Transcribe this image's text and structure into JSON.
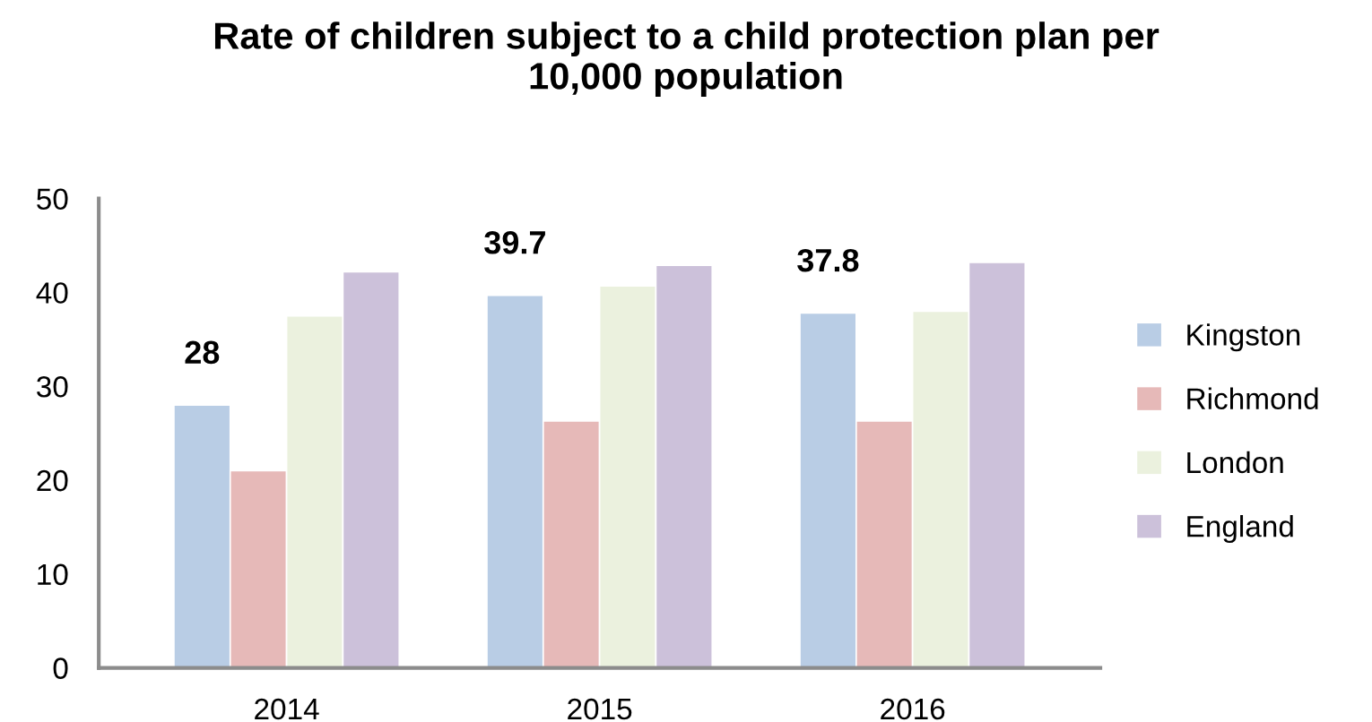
{
  "chart_data": {
    "type": "bar",
    "title": "Rate of children subject to a child protection plan per\n10,000 population",
    "categories": [
      "2014",
      "2015",
      "2016"
    ],
    "series": [
      {
        "name": "Kingston",
        "color": "#b9cde5",
        "values": [
          28,
          39.7,
          37.8
        ],
        "value_labels": [
          "28",
          "39.7",
          "37.8"
        ]
      },
      {
        "name": "Richmond",
        "color": "#e6b9b8",
        "values": [
          21.0,
          26.3,
          26.3
        ]
      },
      {
        "name": "London",
        "color": "#ebf1de",
        "values": [
          37.5,
          40.7,
          38.0
        ]
      },
      {
        "name": "England",
        "color": "#ccc1da",
        "values": [
          42.2,
          42.9,
          43.2
        ]
      }
    ],
    "ylim": [
      0,
      50
    ],
    "yticks": [
      0,
      10,
      20,
      30,
      40,
      50
    ],
    "grid": false,
    "legend": "right"
  }
}
